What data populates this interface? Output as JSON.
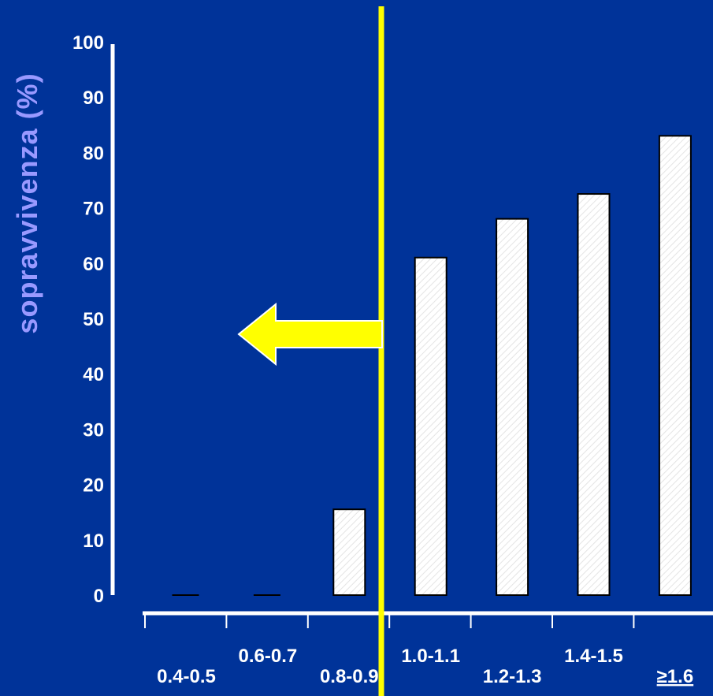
{
  "chart_data": {
    "type": "bar",
    "ylabel": "sopravvivenza (%)",
    "ylim": [
      0,
      100
    ],
    "yticks": [
      0,
      10,
      20,
      30,
      40,
      50,
      60,
      70,
      80,
      90,
      100
    ],
    "categories": [
      {
        "label": "0.4-0.5",
        "level": "low"
      },
      {
        "label": "0.6-0.7",
        "level": "high"
      },
      {
        "label": "0.8-0.9",
        "level": "low"
      },
      {
        "label": "1.0-1.1",
        "level": "high"
      },
      {
        "label": "1.2-1.3",
        "level": "low"
      },
      {
        "label": "1.4-1.5",
        "level": "high"
      },
      {
        "label": "≥1.6",
        "level": "low"
      }
    ],
    "values": [
      0,
      0,
      15.5,
      61,
      68,
      72.5,
      83
    ],
    "annotation": {
      "type": "vertical-line-with-left-arrow",
      "between": [
        "0.8-0.9",
        "1.0-1.1"
      ]
    },
    "grid": false,
    "colors": {
      "background": "#003399",
      "bars": "#ffffff",
      "axes": "#ffffff",
      "ylabel": "#9999ff",
      "marker_line": "#ffff00",
      "arrow": "#ffff00"
    }
  }
}
